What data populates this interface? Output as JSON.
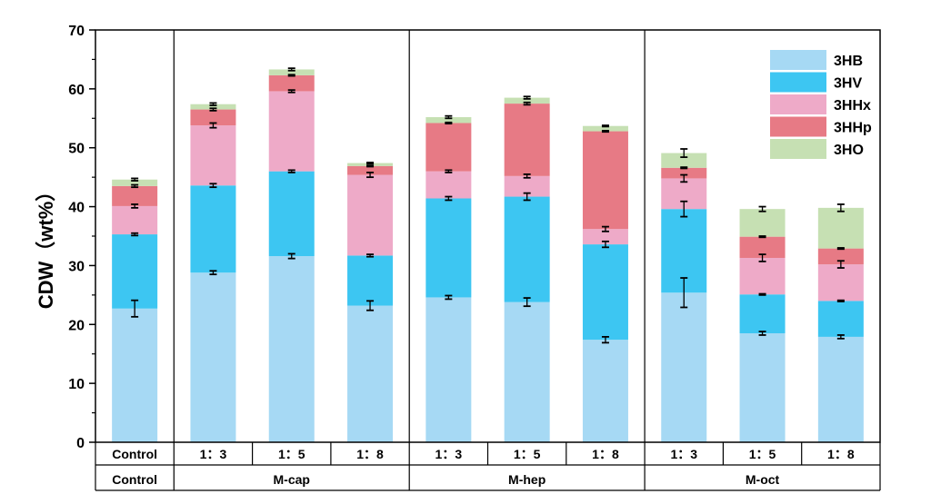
{
  "chart_data": {
    "type": "bar",
    "stacked": true,
    "ylabel": "CDW（wt%）",
    "ylim": [
      0,
      70
    ],
    "yticks": [
      0,
      10,
      20,
      30,
      40,
      50,
      60,
      70
    ],
    "legend_position": "top-right",
    "categories": [
      "Control",
      "1：3",
      "1：5",
      "1：8",
      "1：3",
      "1：5",
      "1：8",
      "1：3",
      "1：5",
      "1：8"
    ],
    "groups": [
      {
        "label": "Control",
        "count": 1
      },
      {
        "label": "M-cap",
        "count": 3
      },
      {
        "label": "M-hep",
        "count": 3
      },
      {
        "label": "M-oct",
        "count": 3
      }
    ],
    "series": [
      {
        "name": "3HB",
        "color": "#a6d9f4",
        "values": [
          22.7,
          28.8,
          31.6,
          23.2,
          24.6,
          23.8,
          17.4,
          25.4,
          18.5,
          17.9
        ],
        "errors": [
          1.4,
          0.3,
          0.4,
          0.8,
          0.3,
          0.7,
          0.5,
          2.5,
          0.3,
          0.3
        ]
      },
      {
        "name": "3HV",
        "color": "#3dc6f2",
        "values": [
          12.6,
          14.8,
          14.4,
          8.5,
          16.8,
          17.9,
          16.2,
          14.2,
          6.6,
          6.1
        ],
        "errors": [
          0.2,
          0.3,
          0.2,
          0.2,
          0.3,
          0.6,
          0.5,
          1.3,
          0.1,
          0.1
        ]
      },
      {
        "name": "3HHx",
        "color": "#eeaac8",
        "values": [
          4.8,
          10.2,
          13.6,
          13.7,
          4.6,
          3.5,
          2.6,
          5.2,
          6.2,
          6.2
        ],
        "errors": [
          0.3,
          0.4,
          0.2,
          0.4,
          0.2,
          0.3,
          0.4,
          0.6,
          0.6,
          0.6
        ]
      },
      {
        "name": "3HHp",
        "color": "#e77a85",
        "values": [
          3.4,
          2.7,
          2.7,
          1.5,
          8.2,
          12.3,
          16.6,
          1.8,
          3.6,
          2.7
        ],
        "errors": [
          0.2,
          0.2,
          0.1,
          0.1,
          0.1,
          0.2,
          0.1,
          0.1,
          0.1,
          0.1
        ]
      },
      {
        "name": "3HO",
        "color": "#c6e0b3",
        "values": [
          1.1,
          0.9,
          1.0,
          0.5,
          1.0,
          1.0,
          0.9,
          2.5,
          4.7,
          6.9
        ],
        "errors": [
          0.2,
          0.2,
          0.2,
          0.1,
          0.2,
          0.2,
          0.1,
          0.7,
          0.4,
          0.6
        ]
      }
    ]
  }
}
